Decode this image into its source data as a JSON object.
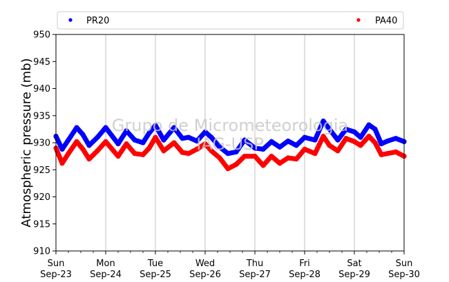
{
  "chart_data": {
    "type": "scatter",
    "ylabel": "Atmospheric pressure (mb)",
    "xlabel": "",
    "ylim": [
      910,
      950
    ],
    "yticks": [
      910,
      915,
      920,
      925,
      930,
      935,
      940,
      945,
      950
    ],
    "xlim": [
      "2018-09-23T00:00",
      "2018-09-30T00:00"
    ],
    "xtick_labels": [
      {
        "day": "Sun",
        "date": "Sep-23"
      },
      {
        "day": "Mon",
        "date": "Sep-24"
      },
      {
        "day": "Tue",
        "date": "Sep-25"
      },
      {
        "day": "Wed",
        "date": "Sep-26"
      },
      {
        "day": "Thu",
        "date": "Sep-27"
      },
      {
        "day": "Fri",
        "date": "Sep-28"
      },
      {
        "day": "Sat",
        "date": "Sep-29"
      },
      {
        "day": "Sun",
        "date": "Sep-30"
      }
    ],
    "grid": "vertical",
    "legend_placement": "top",
    "watermark_lines": [
      "Grupo de Micrometeorologia",
      "IAG-USP"
    ],
    "series": [
      {
        "name": "PR20",
        "color": "#0000ff",
        "x": [
          "2018-09-23T00:00",
          "2018-09-23T03:00",
          "2018-09-23T06:00",
          "2018-09-23T10:00",
          "2018-09-23T13:00",
          "2018-09-23T16:00",
          "2018-09-23T20:00",
          "2018-09-24T00:00",
          "2018-09-24T06:00",
          "2018-09-24T10:00",
          "2018-09-24T14:00",
          "2018-09-24T18:00",
          "2018-09-24T21:00",
          "2018-09-25T00:00",
          "2018-09-25T04:00",
          "2018-09-25T09:00",
          "2018-09-25T13:00",
          "2018-09-25T16:00",
          "2018-09-25T20:00",
          "2018-09-26T00:00",
          "2018-09-26T03:00",
          "2018-09-26T07:00",
          "2018-09-26T11:00",
          "2018-09-26T15:00",
          "2018-09-26T19:00",
          "2018-09-27T00:00",
          "2018-09-27T04:00",
          "2018-09-27T08:00",
          "2018-09-27T12:00",
          "2018-09-27T16:00",
          "2018-09-27T20:00",
          "2018-09-28T00:00",
          "2018-09-28T05:00",
          "2018-09-28T09:00",
          "2018-09-28T12:00",
          "2018-09-28T16:00",
          "2018-09-28T20:00",
          "2018-09-29T00:00",
          "2018-09-29T03:00",
          "2018-09-29T07:00",
          "2018-09-29T10:00",
          "2018-09-29T13:00",
          "2018-09-29T16:00",
          "2018-09-29T20:00",
          "2018-09-30T00:00"
        ],
        "y": [
          931.2,
          928.8,
          930.5,
          932.8,
          931.5,
          929.5,
          931.0,
          932.8,
          929.8,
          932.2,
          930.5,
          930.0,
          931.8,
          933.2,
          930.5,
          932.8,
          930.8,
          931.0,
          930.3,
          932.0,
          931.0,
          929.2,
          928.0,
          928.3,
          930.5,
          929.0,
          928.8,
          930.2,
          929.2,
          930.3,
          929.5,
          931.0,
          930.5,
          934.0,
          932.5,
          930.5,
          932.5,
          932.0,
          931.0,
          933.3,
          932.5,
          929.8,
          930.3,
          930.8,
          930.2
        ]
      },
      {
        "name": "PA40",
        "color": "#ff0000",
        "x": [
          "2018-09-23T00:00",
          "2018-09-23T03:00",
          "2018-09-23T06:00",
          "2018-09-23T10:00",
          "2018-09-23T13:00",
          "2018-09-23T16:00",
          "2018-09-23T20:00",
          "2018-09-24T00:00",
          "2018-09-24T06:00",
          "2018-09-24T10:00",
          "2018-09-24T14:00",
          "2018-09-24T18:00",
          "2018-09-24T21:00",
          "2018-09-25T00:00",
          "2018-09-25T04:00",
          "2018-09-25T09:00",
          "2018-09-25T13:00",
          "2018-09-25T16:00",
          "2018-09-25T20:00",
          "2018-09-26T00:00",
          "2018-09-26T03:00",
          "2018-09-26T07:00",
          "2018-09-26T11:00",
          "2018-09-26T15:00",
          "2018-09-26T19:00",
          "2018-09-27T00:00",
          "2018-09-27T04:00",
          "2018-09-27T08:00",
          "2018-09-27T12:00",
          "2018-09-27T16:00",
          "2018-09-27T20:00",
          "2018-09-28T00:00",
          "2018-09-28T05:00",
          "2018-09-28T09:00",
          "2018-09-28T12:00",
          "2018-09-28T16:00",
          "2018-09-28T20:00",
          "2018-09-29T00:00",
          "2018-09-29T03:00",
          "2018-09-29T07:00",
          "2018-09-29T10:00",
          "2018-09-29T13:00",
          "2018-09-29T16:00",
          "2018-09-29T20:00",
          "2018-09-30T00:00"
        ],
        "y": [
          929.0,
          926.2,
          928.0,
          930.2,
          928.8,
          927.0,
          928.5,
          930.2,
          927.5,
          929.8,
          928.0,
          927.8,
          929.0,
          931.0,
          928.5,
          930.0,
          928.2,
          928.0,
          928.8,
          929.8,
          928.5,
          927.2,
          925.2,
          926.0,
          927.5,
          927.5,
          925.8,
          927.5,
          926.2,
          927.2,
          927.0,
          928.8,
          928.0,
          931.2,
          929.5,
          928.5,
          930.8,
          930.2,
          929.5,
          931.2,
          930.0,
          927.8,
          928.0,
          928.3,
          927.5
        ]
      }
    ]
  }
}
